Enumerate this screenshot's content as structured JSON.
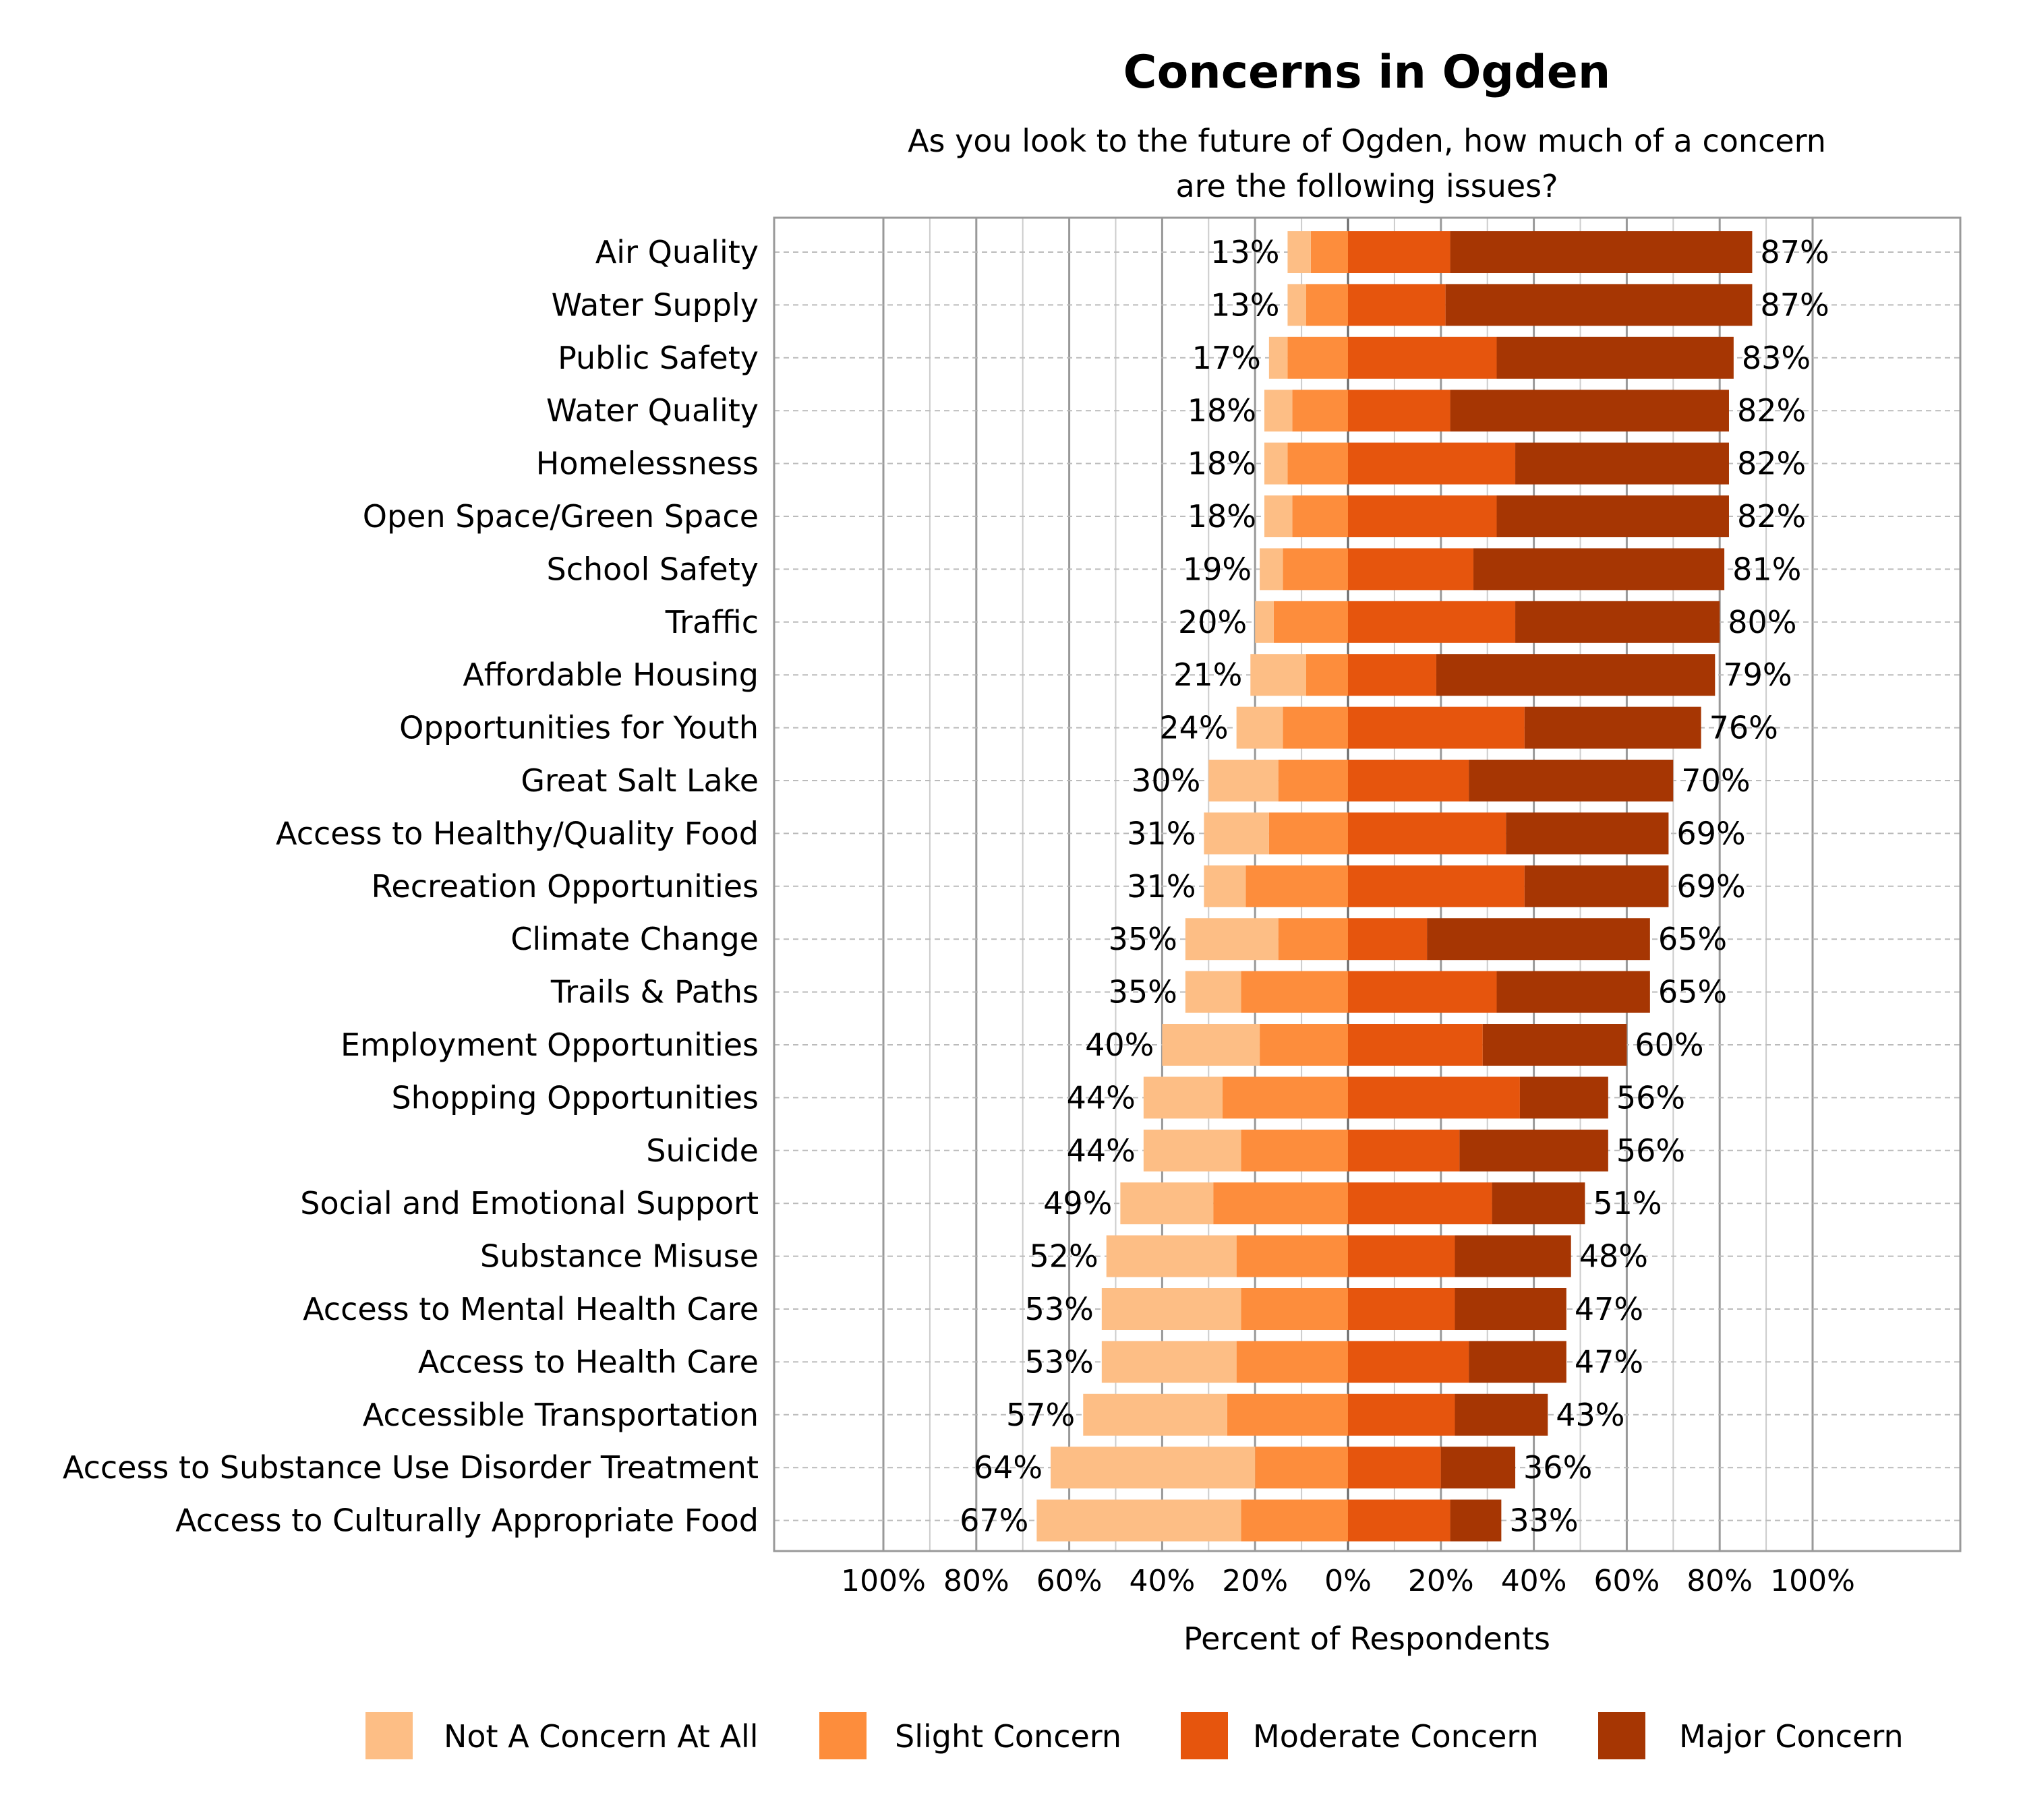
{
  "chart_data": {
    "type": "bar",
    "orientation": "horizontal-diverging-stacked",
    "title": "Concerns in Ogden",
    "subtitle_lines": [
      "As you look to the future of Ogden, how much of a concern",
      "are the following issues?"
    ],
    "xlabel": "Percent of Respondents",
    "ylabel": "",
    "xlim": [
      -100,
      100
    ],
    "xticks": [
      "100%",
      "80%",
      "60%",
      "40%",
      "20%",
      "0%",
      "20%",
      "40%",
      "60%",
      "80%",
      "100%"
    ],
    "grid": true,
    "legend_position": "bottom",
    "colors": {
      "Not A Concern At All": "#FDBE85",
      "Slight Concern": "#FD8D3C",
      "Moderate Concern": "#E6550D",
      "Major Concern": "#A63603"
    },
    "categories": [
      "Air Quality",
      "Water Supply",
      "Public Safety",
      "Water Quality",
      "Homelessness",
      "Open Space/Green Space",
      "School Safety",
      "Traffic",
      "Affordable Housing",
      "Opportunities for Youth",
      "Great Salt Lake",
      "Access to Healthy/Quality Food",
      "Recreation Opportunities",
      "Climate Change",
      "Trails & Paths",
      "Employment Opportunities",
      "Shopping Opportunities",
      "Suicide",
      "Social and Emotional Support",
      "Substance Misuse",
      "Access to Mental Health Care",
      "Access to Health Care",
      "Accessible Transportation",
      "Access to Substance Use Disorder Treatment",
      "Access to Culturally Appropriate Food"
    ],
    "series": [
      {
        "name": "Not A Concern At All",
        "side": "left",
        "values": [
          5,
          4,
          4,
          6,
          5,
          6,
          5,
          4,
          12,
          10,
          15,
          14,
          9,
          20,
          12,
          21,
          17,
          21,
          20,
          28,
          30,
          29,
          31,
          44,
          44
        ]
      },
      {
        "name": "Slight Concern",
        "side": "left",
        "values": [
          8,
          9,
          13,
          12,
          13,
          12,
          14,
          16,
          9,
          14,
          15,
          17,
          22,
          15,
          23,
          19,
          27,
          23,
          29,
          24,
          23,
          24,
          26,
          20,
          23
        ]
      },
      {
        "name": "Moderate Concern",
        "side": "right",
        "values": [
          22,
          21,
          32,
          22,
          36,
          32,
          27,
          36,
          19,
          38,
          26,
          34,
          38,
          17,
          32,
          29,
          37,
          24,
          31,
          23,
          23,
          26,
          23,
          20,
          22
        ]
      },
      {
        "name": "Major Concern",
        "side": "right",
        "values": [
          65,
          66,
          51,
          60,
          46,
          50,
          54,
          44,
          60,
          38,
          44,
          35,
          31,
          48,
          33,
          31,
          19,
          32,
          20,
          25,
          24,
          21,
          20,
          16,
          11
        ]
      }
    ],
    "left_labels": [
      "13%",
      "13%",
      "17%",
      "18%",
      "18%",
      "18%",
      "19%",
      "20%",
      "21%",
      "24%",
      "30%",
      "31%",
      "31%",
      "35%",
      "35%",
      "40%",
      "44%",
      "44%",
      "49%",
      "52%",
      "53%",
      "53%",
      "57%",
      "64%",
      "67%"
    ],
    "right_labels": [
      "87%",
      "87%",
      "83%",
      "82%",
      "82%",
      "82%",
      "81%",
      "80%",
      "79%",
      "76%",
      "70%",
      "69%",
      "69%",
      "65%",
      "65%",
      "60%",
      "56%",
      "56%",
      "51%",
      "48%",
      "47%",
      "47%",
      "43%",
      "36%",
      "33%"
    ]
  }
}
